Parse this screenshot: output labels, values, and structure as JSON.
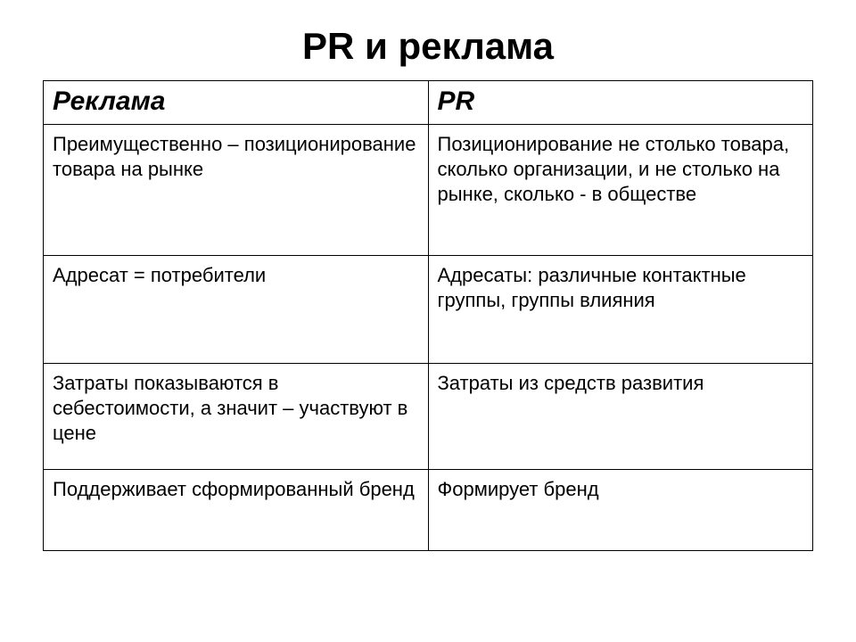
{
  "title": "PR и реклама",
  "table": {
    "type": "table",
    "columns": [
      "Реклама",
      "PR"
    ],
    "column_widths": [
      "50%",
      "50%"
    ],
    "header_fontsize": 30,
    "header_style": "bold-italic",
    "cell_fontsize": 22,
    "border_color": "#000000",
    "background_color": "#ffffff",
    "text_color": "#000000",
    "rows": [
      [
        "Преимущественно – позиционирование товара на рынке",
        "Позиционирование не столько товара, сколько организации, и не столько на рынке, сколько - в обществе"
      ],
      [
        "Адресат = потребители",
        "Адресаты: различные контактные группы, группы влияния"
      ],
      [
        "Затраты показываются в себестоимости, а значит – участвуют в цене",
        "Затраты из средств развития"
      ],
      [
        "Поддерживает сформированный бренд",
        "Формирует бренд"
      ]
    ]
  },
  "title_fontsize": 42,
  "title_color": "#000000",
  "font_family": "Arial"
}
